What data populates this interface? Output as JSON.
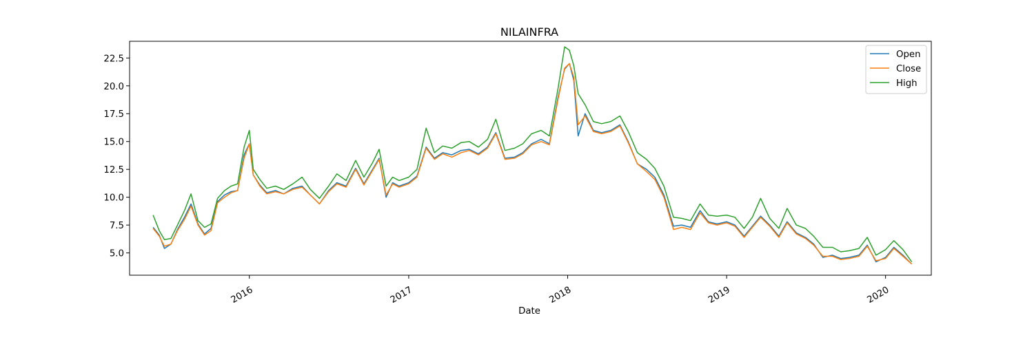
{
  "chart_data": {
    "type": "line",
    "title": "NILAINFRA",
    "xlabel": "Date",
    "ylabel": "",
    "xlim": [
      "2015-04-01",
      "2020-04-15"
    ],
    "ylim": [
      3.0,
      24.0
    ],
    "grid": false,
    "legend_position": "top-right",
    "x_tick_labels": [
      "2016",
      "2017",
      "2018",
      "2019",
      "2020"
    ],
    "x_ticks": [
      "2016-01-01",
      "2017-01-01",
      "2018-01-01",
      "2019-01-01",
      "2020-01-01"
    ],
    "y_ticks": [
      5.0,
      7.5,
      10.0,
      12.5,
      15.0,
      17.5,
      20.0,
      22.5
    ],
    "y_tick_labels": [
      "5.0",
      "7.5",
      "10.0",
      "12.5",
      "15.0",
      "17.5",
      "20.0",
      "22.5"
    ],
    "x": [
      "2015-05-25",
      "2015-06-08",
      "2015-06-20",
      "2015-07-05",
      "2015-07-20",
      "2015-08-05",
      "2015-08-20",
      "2015-09-05",
      "2015-09-20",
      "2015-10-05",
      "2015-10-20",
      "2015-11-05",
      "2015-11-20",
      "2015-12-05",
      "2015-12-20",
      "2016-01-01",
      "2016-01-10",
      "2016-01-25",
      "2016-02-10",
      "2016-03-01",
      "2016-03-20",
      "2016-04-10",
      "2016-05-01",
      "2016-05-20",
      "2016-06-10",
      "2016-07-01",
      "2016-07-20",
      "2016-08-10",
      "2016-09-01",
      "2016-09-20",
      "2016-10-10",
      "2016-10-25",
      "2016-11-10",
      "2016-11-25",
      "2016-12-10",
      "2017-01-01",
      "2017-01-20",
      "2017-02-10",
      "2017-03-01",
      "2017-03-20",
      "2017-04-10",
      "2017-05-01",
      "2017-05-20",
      "2017-06-10",
      "2017-07-01",
      "2017-07-20",
      "2017-08-10",
      "2017-09-01",
      "2017-09-20",
      "2017-10-10",
      "2017-11-01",
      "2017-11-20",
      "2017-12-10",
      "2017-12-25",
      "2018-01-05",
      "2018-01-15",
      "2018-01-25",
      "2018-02-10",
      "2018-03-01",
      "2018-03-20",
      "2018-04-10",
      "2018-05-01",
      "2018-05-20",
      "2018-06-10",
      "2018-07-01",
      "2018-07-20",
      "2018-08-10",
      "2018-09-01",
      "2018-09-20",
      "2018-10-10",
      "2018-11-01",
      "2018-11-20",
      "2018-12-10",
      "2019-01-01",
      "2019-01-20",
      "2019-02-10",
      "2019-03-01",
      "2019-03-20",
      "2019-04-10",
      "2019-05-01",
      "2019-05-20",
      "2019-06-10",
      "2019-07-01",
      "2019-07-20",
      "2019-08-10",
      "2019-09-01",
      "2019-09-20",
      "2019-10-10",
      "2019-11-01",
      "2019-11-20",
      "2019-12-10",
      "2020-01-01",
      "2020-01-20",
      "2020-02-10",
      "2020-03-01"
    ],
    "series": [
      {
        "name": "Open",
        "color": "#1f77b4",
        "values": [
          7.3,
          6.6,
          5.4,
          5.8,
          7.1,
          8.2,
          9.4,
          7.6,
          6.7,
          7.2,
          9.6,
          10.2,
          10.5,
          10.6,
          13.8,
          14.8,
          12.0,
          11.1,
          10.4,
          10.6,
          10.3,
          10.8,
          11.0,
          10.2,
          9.4,
          10.6,
          11.3,
          11.0,
          12.6,
          11.2,
          12.5,
          13.5,
          10.0,
          11.3,
          11.0,
          11.3,
          11.9,
          14.5,
          13.5,
          14.0,
          13.8,
          14.2,
          14.3,
          13.9,
          14.5,
          15.8,
          13.5,
          13.6,
          14.0,
          14.8,
          15.2,
          14.8,
          19.0,
          21.5,
          22.0,
          20.5,
          15.5,
          17.5,
          16.0,
          15.8,
          16.0,
          16.5,
          15.0,
          13.0,
          12.5,
          11.8,
          10.2,
          7.4,
          7.5,
          7.3,
          8.8,
          7.8,
          7.6,
          7.8,
          7.5,
          6.5,
          7.4,
          8.3,
          7.5,
          6.5,
          7.8,
          6.8,
          6.4,
          5.8,
          4.6,
          4.8,
          4.5,
          4.6,
          4.8,
          5.7,
          4.2,
          4.6,
          5.5,
          4.8,
          4.0
        ]
      },
      {
        "name": "Close",
        "color": "#ff7f0e",
        "values": [
          7.2,
          6.5,
          5.6,
          5.8,
          7.0,
          8.0,
          9.2,
          7.5,
          6.6,
          7.0,
          9.5,
          10.0,
          10.4,
          10.6,
          13.5,
          14.8,
          12.0,
          11.0,
          10.3,
          10.5,
          10.3,
          10.7,
          10.9,
          10.2,
          9.4,
          10.5,
          11.2,
          10.9,
          12.5,
          11.1,
          12.4,
          13.4,
          10.2,
          11.2,
          10.9,
          11.2,
          11.8,
          14.4,
          13.4,
          13.9,
          13.6,
          14.0,
          14.2,
          13.8,
          14.4,
          15.7,
          13.4,
          13.5,
          13.9,
          14.7,
          15.0,
          14.7,
          18.8,
          21.6,
          22.0,
          20.8,
          16.5,
          17.3,
          15.9,
          15.7,
          15.9,
          16.4,
          14.9,
          13.0,
          12.3,
          11.6,
          10.0,
          7.1,
          7.3,
          7.1,
          8.6,
          7.7,
          7.5,
          7.7,
          7.4,
          6.4,
          7.3,
          8.2,
          7.4,
          6.4,
          7.7,
          6.7,
          6.3,
          5.7,
          4.7,
          4.7,
          4.4,
          4.5,
          4.7,
          5.6,
          4.3,
          4.5,
          5.4,
          4.7,
          4.0
        ]
      },
      {
        "name": "High",
        "color": "#2ca02c",
        "values": [
          8.4,
          7.0,
          6.2,
          6.3,
          7.5,
          8.8,
          10.3,
          7.9,
          7.3,
          7.6,
          9.9,
          10.6,
          11.0,
          11.2,
          14.5,
          16.0,
          12.5,
          11.6,
          10.8,
          11.0,
          10.7,
          11.2,
          11.8,
          10.7,
          9.9,
          11.0,
          12.1,
          11.5,
          13.3,
          11.8,
          13.1,
          14.3,
          11.0,
          11.8,
          11.5,
          11.8,
          12.5,
          16.2,
          14.0,
          14.6,
          14.4,
          14.9,
          15.0,
          14.5,
          15.2,
          17.0,
          14.2,
          14.4,
          14.8,
          15.7,
          16.0,
          15.5,
          19.8,
          23.5,
          23.2,
          21.8,
          19.3,
          18.3,
          16.8,
          16.6,
          16.8,
          17.3,
          15.9,
          14.0,
          13.4,
          12.6,
          11.0,
          8.2,
          8.1,
          7.9,
          9.4,
          8.4,
          8.3,
          8.4,
          8.2,
          7.2,
          8.2,
          9.9,
          8.1,
          7.2,
          9.0,
          7.5,
          7.2,
          6.5,
          5.5,
          5.5,
          5.1,
          5.2,
          5.4,
          6.4,
          4.8,
          5.3,
          6.1,
          5.3,
          4.2
        ]
      }
    ]
  }
}
